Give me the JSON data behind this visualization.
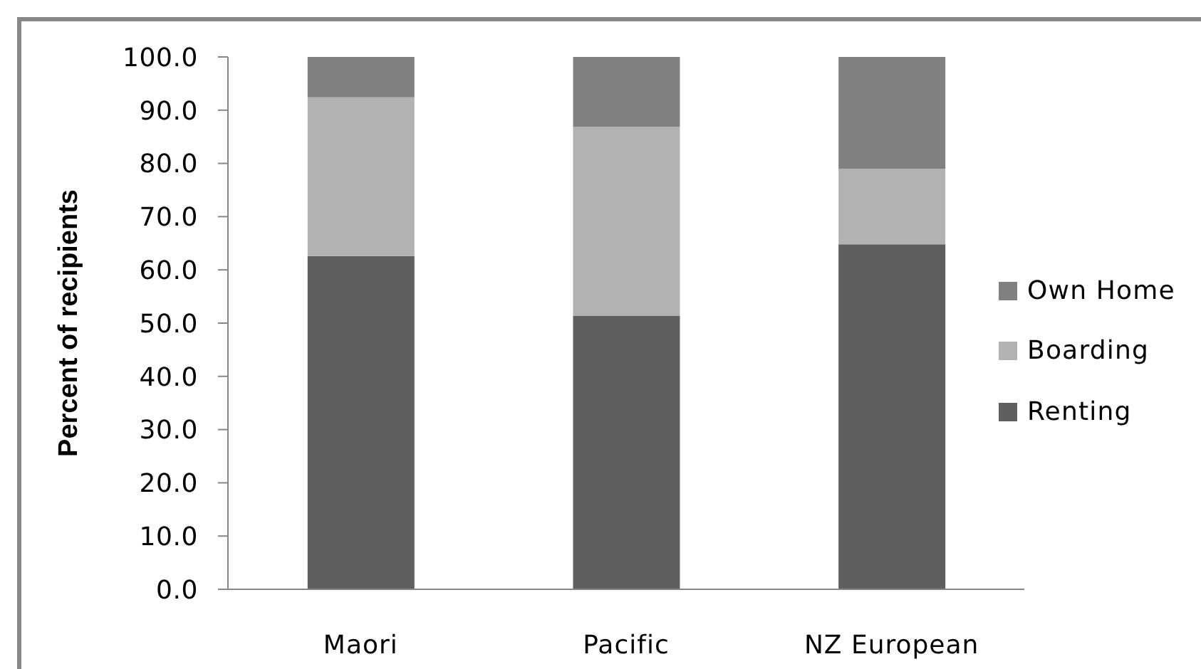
{
  "chart_data": {
    "type": "bar",
    "ylabel": "Percent of recipients",
    "categories": [
      "Maori",
      "Pacific",
      "NZ European"
    ],
    "series": [
      {
        "name": "Renting",
        "color": "#5f5f5f",
        "values": [
          62.6,
          51.4,
          64.8
        ]
      },
      {
        "name": "Boarding",
        "color": "#b2b2b2",
        "values": [
          29.8,
          35.5,
          14.2
        ]
      },
      {
        "name": "Own Home",
        "color": "#808080",
        "values": [
          7.6,
          13.1,
          21.0
        ]
      }
    ],
    "stacked": true,
    "ylim": [
      0,
      100
    ],
    "yticks": [
      {
        "value": 0,
        "label": "0.0"
      },
      {
        "value": 10,
        "label": "10.0"
      },
      {
        "value": 20,
        "label": "20.0"
      },
      {
        "value": 30,
        "label": "30.0"
      },
      {
        "value": 40,
        "label": "40.0"
      },
      {
        "value": 50,
        "label": "50.0"
      },
      {
        "value": 60,
        "label": "60.0"
      },
      {
        "value": 70,
        "label": "70.0"
      },
      {
        "value": 80,
        "label": "80.0"
      },
      {
        "value": 90,
        "label": "90.0"
      },
      {
        "value": 100,
        "label": "100.0"
      }
    ],
    "legend": "right"
  }
}
